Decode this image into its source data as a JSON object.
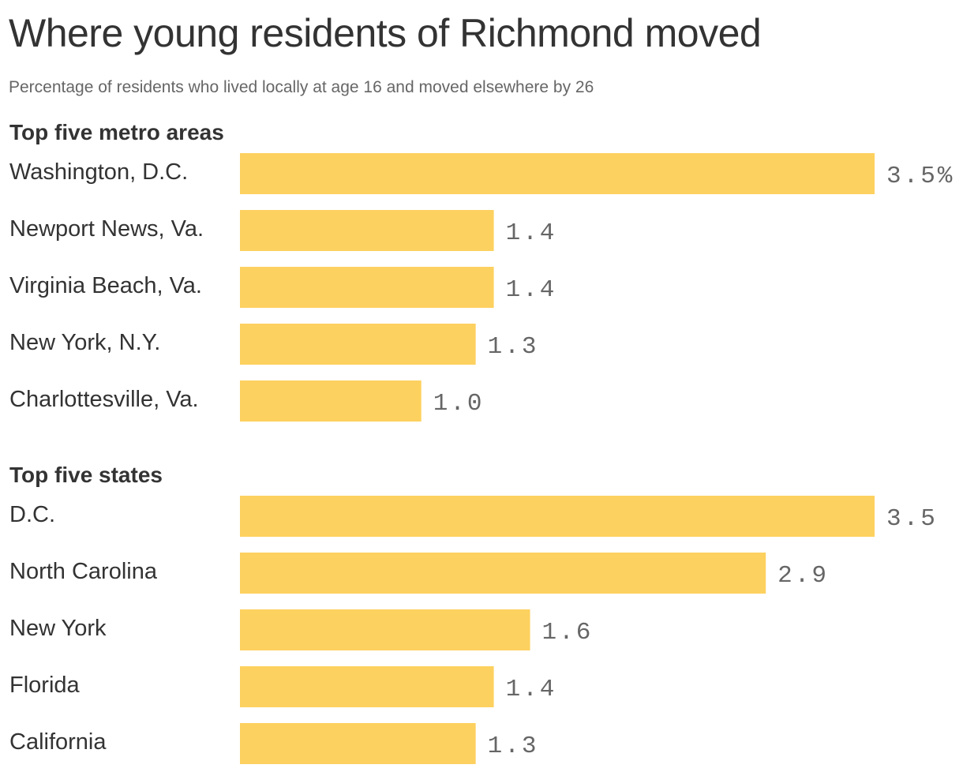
{
  "header": {
    "title": "Where young residents of Richmond moved",
    "subtitle": "Percentage of residents who lived locally at age 16 and moved elsewhere by 26"
  },
  "colors": {
    "bar": "#FDD15F",
    "text": "#333333",
    "value_text": "#666666",
    "background": "#FFFFFF"
  },
  "chart_data": [
    {
      "type": "bar",
      "orientation": "horizontal",
      "title": "Top five metro areas",
      "categories": [
        "Washington, D.C.",
        "Newport News, Va.",
        "Virginia Beach, Va.",
        "New York, N.Y.",
        "Charlottesville, Va."
      ],
      "values": [
        3.5,
        1.4,
        1.4,
        1.3,
        1.0
      ],
      "value_labels": [
        "3.5%",
        "1.4",
        "1.4",
        "1.3",
        "1.0"
      ],
      "xlim": [
        0,
        3.5
      ],
      "grid": false,
      "legend": "none"
    },
    {
      "type": "bar",
      "orientation": "horizontal",
      "title": "Top five states",
      "categories": [
        "D.C.",
        "North Carolina",
        "New York",
        "Florida",
        "California"
      ],
      "values": [
        3.5,
        2.9,
        1.6,
        1.4,
        1.3
      ],
      "value_labels": [
        "3.5",
        "2.9",
        "1.6",
        "1.4",
        "1.3"
      ],
      "xlim": [
        0,
        3.5
      ],
      "grid": false,
      "legend": "none"
    }
  ]
}
